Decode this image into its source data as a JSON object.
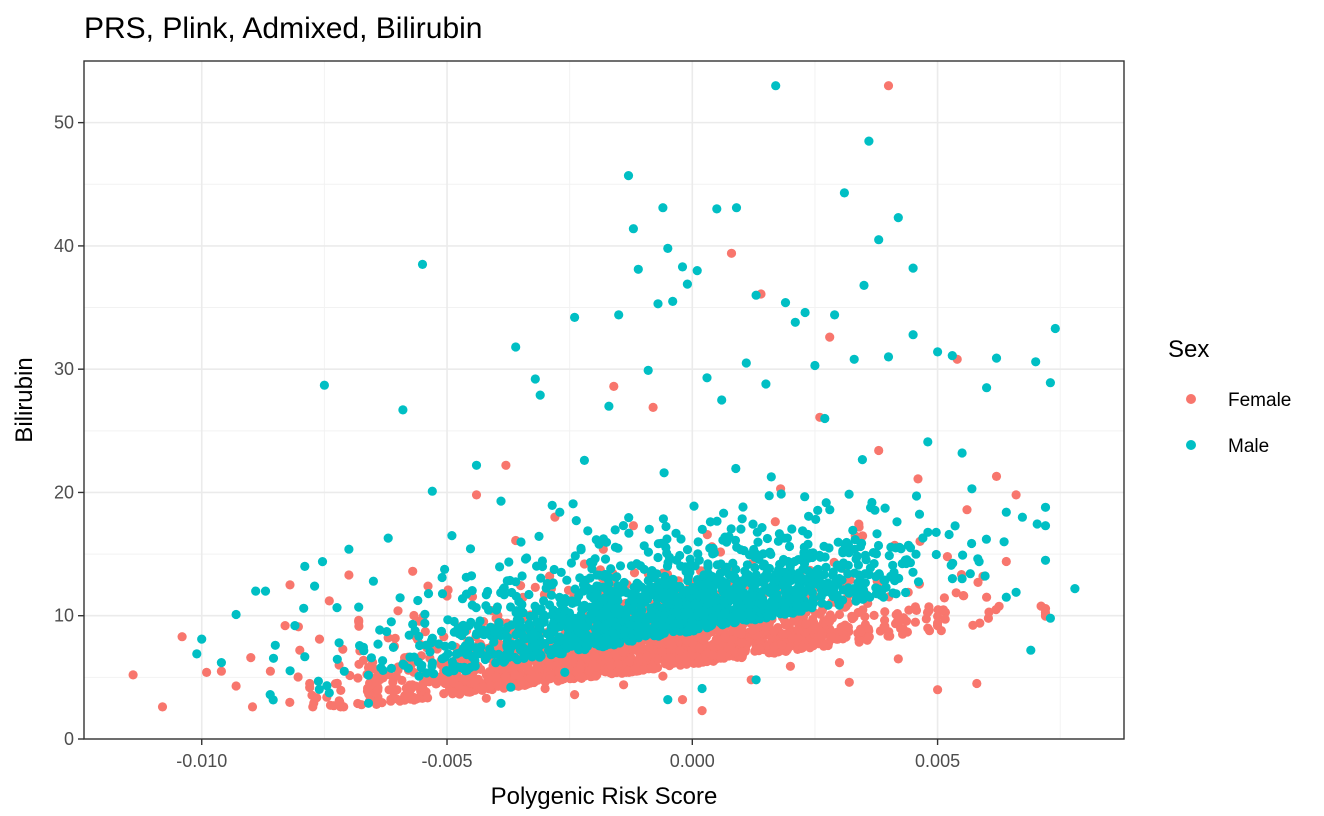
{
  "chart_data": {
    "type": "scatter",
    "title": "PRS, Plink, Admixed, Bilirubin",
    "xlabel": "Polygenic Risk Score",
    "ylabel": "Bilirubin",
    "xlim": [
      -0.0124,
      0.0088
    ],
    "ylim": [
      0,
      55
    ],
    "x_ticks": [
      -0.01,
      -0.005,
      0.0,
      0.005
    ],
    "x_tick_labels": [
      "-0.010",
      "-0.005",
      "0.000",
      "0.005"
    ],
    "y_ticks": [
      0,
      10,
      20,
      30,
      40,
      50
    ],
    "y_tick_labels": [
      "0",
      "10",
      "20",
      "30",
      "40",
      "50"
    ],
    "grid": true,
    "legend": {
      "title": "Sex",
      "placement": "right",
      "entries": [
        {
          "label": "Female",
          "color": "#F8766D"
        },
        {
          "label": "Male",
          "color": "#00BFC4"
        }
      ]
    },
    "series": [
      {
        "name": "Female",
        "color": "#F8766D",
        "points": [
          [
            -0.0114,
            5.2
          ],
          [
            -0.0104,
            8.3
          ],
          [
            -0.0099,
            5.4
          ],
          [
            -0.0096,
            5.5
          ],
          [
            -0.0093,
            4.3
          ],
          [
            -0.009,
            6.6
          ],
          [
            -0.0086,
            5.5
          ],
          [
            -0.0083,
            9.2
          ],
          [
            -0.0082,
            12.5
          ],
          [
            -0.008,
            7.2
          ],
          [
            -0.0078,
            4.5
          ],
          [
            -0.0076,
            8.1
          ],
          [
            -0.0074,
            11.2
          ],
          [
            -0.0072,
            6.0
          ],
          [
            -0.007,
            13.3
          ],
          [
            -0.0068,
            9.5
          ],
          [
            -0.0066,
            5.8
          ],
          [
            -0.0064,
            3.1
          ],
          [
            -0.0062,
            8.2
          ],
          [
            -0.006,
            5.6
          ],
          [
            -0.0057,
            13.6
          ],
          [
            -0.0055,
            4.2
          ],
          [
            -0.0052,
            7.3
          ],
          [
            -0.005,
            11.6
          ],
          [
            -0.0048,
            5.4
          ],
          [
            -0.0046,
            8.8
          ],
          [
            -0.0044,
            19.8
          ],
          [
            -0.0042,
            3.3
          ],
          [
            -0.004,
            9.8
          ],
          [
            -0.0038,
            22.2
          ],
          [
            -0.0036,
            16.1
          ],
          [
            -0.0034,
            6.2
          ],
          [
            -0.0032,
            12.3
          ],
          [
            -0.003,
            4.1
          ],
          [
            -0.0028,
            18.0
          ],
          [
            -0.0026,
            8.5
          ],
          [
            -0.0024,
            3.6
          ],
          [
            -0.0022,
            14.2
          ],
          [
            -0.002,
            6.7
          ],
          [
            -0.0018,
            10.9
          ],
          [
            -0.0016,
            28.6
          ],
          [
            -0.0014,
            4.4
          ],
          [
            -0.0012,
            17.3
          ],
          [
            -0.001,
            9.2
          ],
          [
            -0.0008,
            26.9
          ],
          [
            -0.0006,
            5.1
          ],
          [
            -0.0004,
            12.8
          ],
          [
            -0.0002,
            3.2
          ],
          [
            0.0,
            8.6
          ],
          [
            0.0002,
            2.3
          ],
          [
            0.0004,
            15.6
          ],
          [
            0.0006,
            6.9
          ],
          [
            0.0008,
            39.4
          ],
          [
            0.001,
            11.3
          ],
          [
            0.0012,
            4.8
          ],
          [
            0.0014,
            36.1
          ],
          [
            0.0016,
            9.7
          ],
          [
            0.0018,
            20.3
          ],
          [
            0.002,
            5.9
          ],
          [
            0.0022,
            13.5
          ],
          [
            0.0024,
            7.4
          ],
          [
            0.0026,
            26.1
          ],
          [
            0.0028,
            32.6
          ],
          [
            0.003,
            10.1
          ],
          [
            0.0032,
            4.6
          ],
          [
            0.0034,
            17.2
          ],
          [
            0.0036,
            8.3
          ],
          [
            0.0038,
            23.4
          ],
          [
            0.004,
            53.0
          ],
          [
            0.0042,
            6.5
          ],
          [
            0.0044,
            11.9
          ],
          [
            0.0046,
            21.1
          ],
          [
            0.0048,
            9.0
          ],
          [
            0.005,
            4.0
          ],
          [
            0.0052,
            14.8
          ],
          [
            0.0054,
            30.8
          ],
          [
            0.0056,
            18.6
          ],
          [
            0.0058,
            4.5
          ],
          [
            0.006,
            11.5
          ],
          [
            0.0062,
            21.3
          ],
          [
            0.0064,
            14.4
          ],
          [
            0.0066,
            19.8
          ],
          [
            -0.005,
            6.1
          ],
          [
            -0.003,
            7.0
          ],
          [
            -0.001,
            5.6
          ],
          [
            0.001,
            7.8
          ],
          [
            0.003,
            6.2
          ],
          [
            0.005,
            9.4
          ],
          [
            -0.006,
            10.4
          ],
          [
            -0.002,
            9.6
          ]
        ]
      },
      {
        "name": "Male",
        "color": "#00BFC4",
        "points": [
          [
            -0.0101,
            6.9
          ],
          [
            -0.01,
            8.1
          ],
          [
            -0.0096,
            6.2
          ],
          [
            -0.0093,
            10.1
          ],
          [
            -0.0089,
            12.0
          ],
          [
            -0.0087,
            12.0
          ],
          [
            -0.0085,
            7.6
          ],
          [
            -0.0081,
            9.2
          ],
          [
            -0.0079,
            14.0
          ],
          [
            -0.0077,
            12.4
          ],
          [
            -0.0075,
            28.7
          ],
          [
            -0.0072,
            7.8
          ],
          [
            -0.007,
            15.4
          ],
          [
            -0.0068,
            10.7
          ],
          [
            -0.0065,
            12.8
          ],
          [
            -0.0062,
            16.3
          ],
          [
            -0.0059,
            26.7
          ],
          [
            -0.0057,
            9.3
          ],
          [
            -0.0055,
            38.5
          ],
          [
            -0.0053,
            20.1
          ],
          [
            -0.0051,
            13.1
          ],
          [
            -0.0049,
            16.5
          ],
          [
            -0.0047,
            8.4
          ],
          [
            -0.0044,
            22.2
          ],
          [
            -0.0042,
            11.7
          ],
          [
            -0.0039,
            19.3
          ],
          [
            -0.0036,
            31.8
          ],
          [
            -0.0034,
            14.6
          ],
          [
            -0.0032,
            29.2
          ],
          [
            -0.0031,
            27.9
          ],
          [
            -0.0029,
            12.5
          ],
          [
            -0.0027,
            18.4
          ],
          [
            -0.0024,
            34.2
          ],
          [
            -0.0022,
            22.6
          ],
          [
            -0.0019,
            15.8
          ],
          [
            -0.0017,
            27.0
          ],
          [
            -0.0015,
            34.4
          ],
          [
            -0.0013,
            45.7
          ],
          [
            -0.0012,
            41.4
          ],
          [
            -0.0011,
            38.1
          ],
          [
            -0.0009,
            29.9
          ],
          [
            -0.0007,
            35.3
          ],
          [
            -0.0006,
            43.1
          ],
          [
            -0.0005,
            39.8
          ],
          [
            -0.0004,
            35.5
          ],
          [
            -0.0002,
            38.3
          ],
          [
            -0.0001,
            36.9
          ],
          [
            0.0001,
            38.0
          ],
          [
            0.0003,
            29.3
          ],
          [
            0.0005,
            43.0
          ],
          [
            0.0006,
            27.5
          ],
          [
            0.0009,
            43.1
          ],
          [
            0.0011,
            30.5
          ],
          [
            0.0013,
            36.0
          ],
          [
            0.0015,
            28.8
          ],
          [
            0.0017,
            53.0
          ],
          [
            0.0019,
            35.4
          ],
          [
            0.0021,
            33.8
          ],
          [
            0.0023,
            34.6
          ],
          [
            0.0025,
            30.3
          ],
          [
            0.0027,
            26.0
          ],
          [
            0.0029,
            34.4
          ],
          [
            0.0031,
            44.3
          ],
          [
            0.0033,
            30.8
          ],
          [
            0.0035,
            36.8
          ],
          [
            0.0036,
            48.5
          ],
          [
            0.0038,
            40.5
          ],
          [
            0.004,
            31.0
          ],
          [
            0.0042,
            42.3
          ],
          [
            0.0045,
            38.2
          ],
          [
            0.0045,
            32.8
          ],
          [
            0.0048,
            24.1
          ],
          [
            0.005,
            31.4
          ],
          [
            0.0053,
            31.1
          ],
          [
            0.0055,
            23.2
          ],
          [
            0.0057,
            20.3
          ],
          [
            0.006,
            28.5
          ],
          [
            0.0062,
            30.9
          ],
          [
            0.0064,
            18.4
          ],
          [
            0.0066,
            11.9
          ],
          [
            0.0069,
            7.2
          ],
          [
            0.007,
            30.6
          ],
          [
            0.0072,
            14.5
          ],
          [
            0.0073,
            28.9
          ],
          [
            0.0073,
            9.8
          ],
          [
            0.0074,
            33.3
          ],
          [
            0.0078,
            12.2
          ],
          [
            0.0064,
            11.5
          ],
          [
            -0.0037,
            4.2
          ],
          [
            -0.0039,
            2.9
          ],
          [
            -0.0066,
            2.9
          ],
          [
            -0.0005,
            3.2
          ],
          [
            0.0002,
            4.1
          ],
          [
            0.0013,
            4.8
          ],
          [
            -0.0026,
            5.4
          ]
        ]
      }
    ]
  }
}
